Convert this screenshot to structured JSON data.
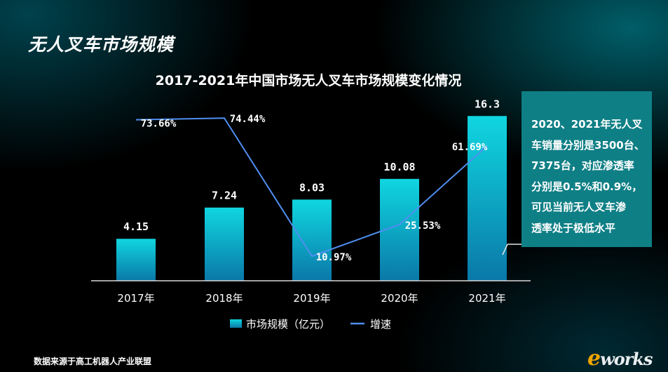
{
  "page_title": "无人叉车市场规模",
  "source": "数据来源于高工机器人产业联盟",
  "note": {
    "lines": [
      "2020、2021年无人叉",
      "车销量分别是3500台、",
      "7375台，对应渗透率",
      "分别是0.5%和0.9%，",
      "可见当前无人叉车渗",
      "透率处于极低水平"
    ]
  },
  "logo": {
    "e": "e",
    "rest": "works"
  },
  "colors": {
    "bar_top": "#10d6e0",
    "bar_bottom": "#0a78a8",
    "line": "#4f8ff0",
    "note_bg": "#0f7f86"
  },
  "chart_data": {
    "type": "bar",
    "title": "2017-2021年中国市场无人叉车市场规模变化情况",
    "categories": [
      "2017年",
      "2018年",
      "2019年",
      "2020年",
      "2021年"
    ],
    "series": [
      {
        "name": "市场规模（亿元）",
        "type": "bar",
        "values": [
          4.15,
          7.24,
          8.03,
          10.08,
          16.3
        ],
        "labels": [
          "4.15",
          "7.24",
          "8.03",
          "10.08",
          "16.3"
        ]
      },
      {
        "name": "增速",
        "type": "line",
        "values": [
          73.66,
          74.44,
          10.97,
          25.53,
          61.69
        ],
        "labels": [
          "73.66%",
          "74.44%",
          "10.97%",
          "25.53%",
          "61.69%"
        ]
      }
    ],
    "legend_position": "bottom",
    "grid": false
  }
}
